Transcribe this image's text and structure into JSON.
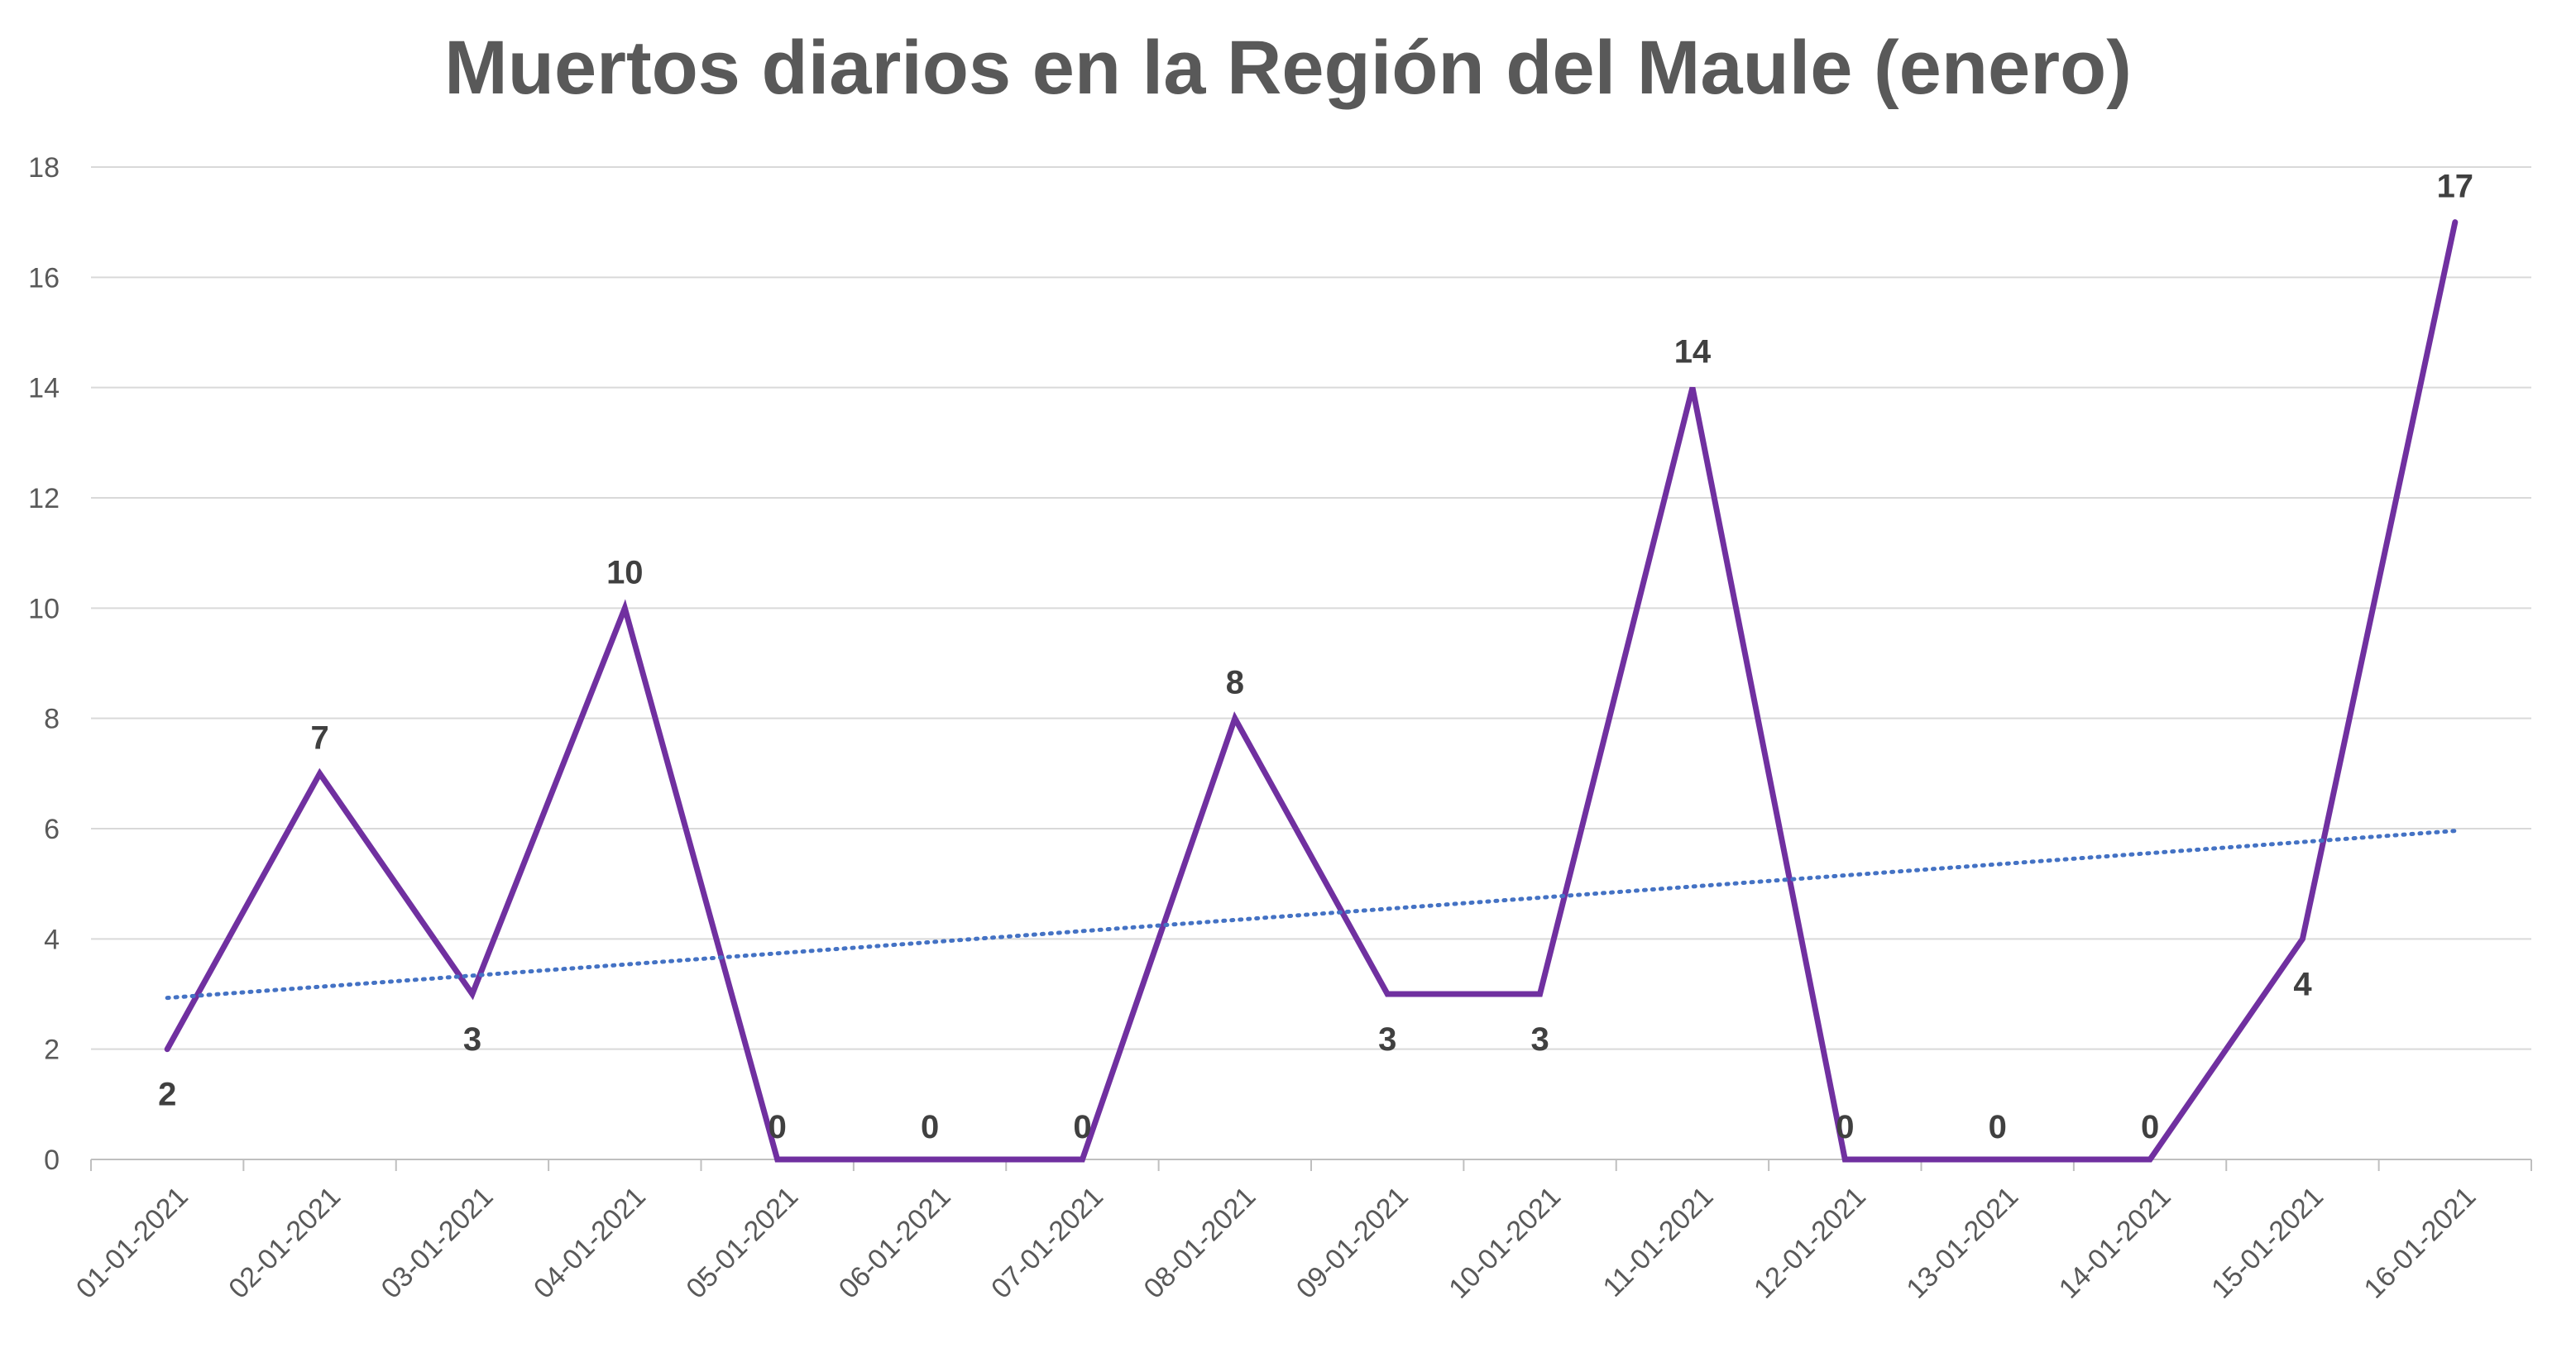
{
  "chart_data": {
    "type": "line",
    "title": "Muertos diarios en la Región del Maule (enero)",
    "xlabel": "",
    "ylabel": "",
    "categories": [
      "01-01-2021",
      "02-01-2021",
      "03-01-2021",
      "04-01-2021",
      "05-01-2021",
      "06-01-2021",
      "07-01-2021",
      "08-01-2021",
      "09-01-2021",
      "10-01-2021",
      "11-01-2021",
      "12-01-2021",
      "13-01-2021",
      "14-01-2021",
      "15-01-2021",
      "16-01-2021"
    ],
    "series": [
      {
        "values": [
          2,
          7,
          3,
          10,
          0,
          0,
          0,
          8,
          3,
          3,
          14,
          0,
          0,
          0,
          4,
          17
        ],
        "color": "#7030A0"
      }
    ],
    "trendline": {
      "type": "linear",
      "style": "dotted",
      "color": "#4472C4",
      "start": 2.93,
      "end": 5.96
    },
    "ylim": [
      0,
      18
    ],
    "yticks": [
      0,
      2,
      4,
      6,
      8,
      10,
      12,
      14,
      16,
      18
    ],
    "grid": true,
    "legend": "none",
    "colors": {
      "gridline": "#D9D9D9",
      "axis": "#BFBFBF",
      "text": "#595959",
      "label": "#404040"
    }
  }
}
